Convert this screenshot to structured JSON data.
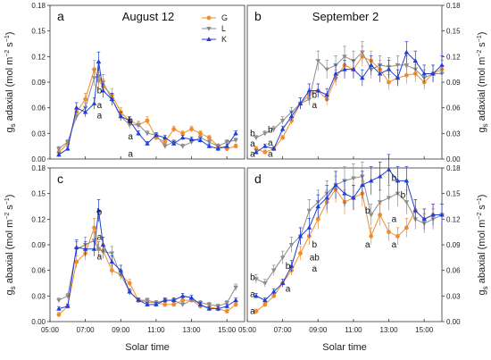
{
  "figure": {
    "xlabel": "Solar time",
    "ylabel_top": "g_s adaxial (mol m^-2 s^-1)",
    "ylabel_bottom": "g_s abaxial (mol m^-2 s^-1)",
    "legend": [
      {
        "name": "G",
        "color": "#f28c28",
        "marker": "circle"
      },
      {
        "name": "L",
        "color": "#8c8c8c",
        "marker": "triangle-down"
      },
      {
        "name": "K",
        "color": "#1f3fd6",
        "marker": "triangle-up"
      }
    ]
  },
  "chart_data": [
    {
      "panel": "a",
      "title": "August 12",
      "type": "line",
      "x": [
        "05:30",
        "06:00",
        "06:30",
        "07:00",
        "07:30",
        "07:45",
        "08:00",
        "08:30",
        "09:00",
        "09:30",
        "10:00",
        "10:30",
        "11:00",
        "11:30",
        "12:00",
        "12:30",
        "13:00",
        "13:30",
        "14:00",
        "14:30",
        "15:00",
        "15:30"
      ],
      "xlim": [
        "05:00",
        "16:00"
      ],
      "xticks": [
        "05:00",
        "07:00",
        "09:00",
        "11:00",
        "13:00",
        "15:00"
      ],
      "ylim": [
        0,
        0.18
      ],
      "yticks": [
        0.0,
        0.03,
        0.06,
        0.09,
        0.12,
        0.15,
        0.18
      ],
      "series": [
        {
          "name": "G",
          "color": "#f28c28",
          "values": [
            0.008,
            0.018,
            0.055,
            0.07,
            0.105,
            0.092,
            0.085,
            0.075,
            0.055,
            0.045,
            0.04,
            0.045,
            0.025,
            0.02,
            0.035,
            0.03,
            0.035,
            0.03,
            0.025,
            0.015,
            0.012,
            0.015
          ]
        },
        {
          "name": "L",
          "color": "#8c8c8c",
          "values": [
            0.012,
            0.02,
            0.05,
            0.06,
            0.095,
            0.097,
            0.09,
            0.07,
            0.05,
            0.04,
            0.04,
            0.03,
            0.028,
            0.015,
            0.02,
            0.015,
            0.02,
            0.025,
            0.02,
            0.015,
            0.02,
            0.022
          ]
        },
        {
          "name": "K",
          "color": "#1f3fd6",
          "values": [
            0.005,
            0.012,
            0.06,
            0.055,
            0.065,
            0.114,
            0.08,
            0.07,
            0.05,
            0.045,
            0.03,
            0.018,
            0.028,
            0.025,
            0.018,
            0.025,
            0.023,
            0.022,
            0.015,
            0.012,
            0.015,
            0.03
          ]
        }
      ],
      "annotations": [
        {
          "text": "b",
          "x": "08:00",
          "y": 0.08
        },
        {
          "text": "a",
          "x": "08:00",
          "y": 0.063
        },
        {
          "text": "a",
          "x": "08:00",
          "y": 0.051
        },
        {
          "text": "b",
          "x": "09:45",
          "y": 0.045
        },
        {
          "text": "a",
          "x": "09:45",
          "y": 0.026
        },
        {
          "text": "a",
          "x": "09:45",
          "y": 0.006
        }
      ]
    },
    {
      "panel": "b",
      "title": "September 2",
      "type": "line",
      "x": [
        "05:30",
        "06:00",
        "06:30",
        "07:00",
        "07:30",
        "08:00",
        "08:30",
        "09:00",
        "09:30",
        "10:00",
        "10:30",
        "11:00",
        "11:30",
        "12:00",
        "12:30",
        "13:00",
        "13:30",
        "14:00",
        "14:30",
        "15:00",
        "15:30",
        "16:00"
      ],
      "xlim": [
        "05:00",
        "16:00"
      ],
      "xticks": [
        "05:00",
        "07:00",
        "09:00",
        "11:00",
        "13:00",
        "15:00"
      ],
      "ylim": [
        0,
        0.18
      ],
      "yticks": [
        0.0,
        0.03,
        0.06,
        0.09,
        0.12,
        0.15,
        0.18
      ],
      "series": [
        {
          "name": "G",
          "color": "#f28c28",
          "values": [
            0.012,
            0.008,
            0.012,
            0.025,
            0.045,
            0.065,
            0.075,
            0.08,
            0.07,
            0.095,
            0.11,
            0.105,
            0.12,
            0.115,
            0.105,
            0.09,
            0.095,
            0.098,
            0.1,
            0.09,
            0.1,
            0.105
          ]
        },
        {
          "name": "L",
          "color": "#8c8c8c",
          "values": [
            0.025,
            0.03,
            0.035,
            0.045,
            0.055,
            0.065,
            0.07,
            0.115,
            0.105,
            0.11,
            0.12,
            0.115,
            0.125,
            0.105,
            0.11,
            0.108,
            0.11,
            0.11,
            0.105,
            0.095,
            0.1,
            0.1
          ]
        },
        {
          "name": "K",
          "color": "#1f3fd6",
          "values": [
            0.008,
            0.015,
            0.012,
            0.035,
            0.05,
            0.065,
            0.08,
            0.08,
            0.075,
            0.1,
            0.105,
            0.105,
            0.095,
            0.11,
            0.1,
            0.105,
            0.095,
            0.125,
            0.115,
            0.1,
            0.1,
            0.11
          ]
        }
      ],
      "annotations": [
        {
          "text": "b",
          "x": "05:30",
          "y": 0.03
        },
        {
          "text": "a",
          "x": "05:30",
          "y": 0.018
        },
        {
          "text": "a",
          "x": "05:30",
          "y": 0.006
        },
        {
          "text": "b",
          "x": "06:30",
          "y": 0.034
        },
        {
          "text": "a",
          "x": "06:30",
          "y": 0.019
        },
        {
          "text": "a",
          "x": "06:30",
          "y": 0.006
        },
        {
          "text": "b",
          "x": "09:00",
          "y": 0.075
        },
        {
          "text": "a",
          "x": "09:00",
          "y": 0.063
        }
      ]
    },
    {
      "panel": "c",
      "title": "",
      "type": "line",
      "x": [
        "05:30",
        "06:00",
        "06:30",
        "07:00",
        "07:30",
        "07:45",
        "08:00",
        "08:30",
        "09:00",
        "09:30",
        "10:00",
        "10:30",
        "11:00",
        "11:30",
        "12:00",
        "12:30",
        "13:00",
        "13:30",
        "14:00",
        "14:30",
        "15:00",
        "15:30"
      ],
      "xlim": [
        "05:00",
        "16:00"
      ],
      "xticks": [
        "05:00",
        "07:00",
        "09:00",
        "11:00",
        "13:00",
        "15:00"
      ],
      "ylim": [
        0,
        0.18
      ],
      "yticks": [
        0.0,
        0.03,
        0.06,
        0.09,
        0.12,
        0.15,
        0.18
      ],
      "series": [
        {
          "name": "G",
          "color": "#f28c28",
          "values": [
            0.008,
            0.018,
            0.07,
            0.08,
            0.11,
            0.085,
            0.083,
            0.06,
            0.055,
            0.045,
            0.025,
            0.023,
            0.022,
            0.02,
            0.02,
            0.025,
            0.025,
            0.018,
            0.017,
            0.015,
            0.012,
            0.02
          ]
        },
        {
          "name": "L",
          "color": "#8c8c8c",
          "values": [
            0.025,
            0.03,
            0.085,
            0.09,
            0.095,
            0.085,
            0.082,
            0.08,
            0.055,
            0.035,
            0.025,
            0.025,
            0.022,
            0.025,
            0.025,
            0.02,
            0.025,
            0.022,
            0.02,
            0.018,
            0.022,
            0.04
          ]
        },
        {
          "name": "K",
          "color": "#1f3fd6",
          "values": [
            0.015,
            0.018,
            0.087,
            0.085,
            0.085,
            0.13,
            0.09,
            0.07,
            0.06,
            0.035,
            0.025,
            0.02,
            0.02,
            0.025,
            0.025,
            0.03,
            0.028,
            0.02,
            0.015,
            0.015,
            0.018,
            0.025
          ]
        }
      ],
      "annotations": [
        {
          "text": "b",
          "x": "08:00",
          "y": 0.128
        },
        {
          "text": "a",
          "x": "08:00",
          "y": 0.099
        },
        {
          "text": "a",
          "x": "08:00",
          "y": 0.076
        }
      ]
    },
    {
      "panel": "d",
      "title": "",
      "type": "line",
      "x": [
        "05:30",
        "06:00",
        "06:30",
        "07:00",
        "07:30",
        "08:00",
        "08:30",
        "09:00",
        "09:30",
        "10:00",
        "10:30",
        "11:00",
        "11:30",
        "12:00",
        "12:30",
        "13:00",
        "13:30",
        "14:00",
        "14:30",
        "15:00",
        "15:30",
        "16:00"
      ],
      "xlim": [
        "05:00",
        "16:00"
      ],
      "xticks": [
        "05:00",
        "07:00",
        "09:00",
        "11:00",
        "13:00",
        "15:00"
      ],
      "ylim": [
        0,
        0.18
      ],
      "yticks": [
        0.0,
        0.03,
        0.06,
        0.09,
        0.12,
        0.15,
        0.18
      ],
      "series": [
        {
          "name": "G",
          "color": "#f28c28",
          "values": [
            0.012,
            0.02,
            0.03,
            0.045,
            0.06,
            0.08,
            0.1,
            0.12,
            0.14,
            0.155,
            0.14,
            0.145,
            0.15,
            0.1,
            0.125,
            0.105,
            0.1,
            0.11,
            0.13,
            0.12,
            0.125,
            0.125
          ]
        },
        {
          "name": "L",
          "color": "#8c8c8c",
          "values": [
            0.05,
            0.045,
            0.06,
            0.075,
            0.09,
            0.1,
            0.13,
            0.14,
            0.15,
            0.16,
            0.165,
            0.168,
            0.17,
            0.125,
            0.14,
            0.145,
            0.15,
            0.14,
            0.12,
            0.115,
            0.12,
            0.125
          ]
        },
        {
          "name": "K",
          "color": "#1f3fd6",
          "values": [
            0.03,
            0.025,
            0.035,
            0.045,
            0.065,
            0.1,
            0.11,
            0.135,
            0.145,
            0.16,
            0.15,
            0.145,
            0.16,
            0.165,
            0.17,
            0.178,
            0.165,
            0.165,
            0.13,
            0.12,
            0.125,
            0.125
          ]
        }
      ],
      "annotations": [
        {
          "text": "b",
          "x": "05:30",
          "y": 0.052
        },
        {
          "text": "a",
          "x": "05:30",
          "y": 0.032
        },
        {
          "text": "a",
          "x": "05:30",
          "y": 0.012
        },
        {
          "text": "b",
          "x": "07:30",
          "y": 0.065
        },
        {
          "text": "a",
          "x": "07:30",
          "y": 0.038
        },
        {
          "text": "b",
          "x": "09:00",
          "y": 0.09
        },
        {
          "text": "ab",
          "x": "09:00",
          "y": 0.075
        },
        {
          "text": "a",
          "x": "09:00",
          "y": 0.062
        },
        {
          "text": "b",
          "x": "12:00",
          "y": 0.13
        },
        {
          "text": "a",
          "x": "12:00",
          "y": 0.09
        },
        {
          "text": "b",
          "x": "13:30",
          "y": 0.168
        },
        {
          "text": "b",
          "x": "14:00",
          "y": 0.148
        },
        {
          "text": "a",
          "x": "13:30",
          "y": 0.12
        },
        {
          "text": "a",
          "x": "13:30",
          "y": 0.09
        }
      ]
    }
  ]
}
